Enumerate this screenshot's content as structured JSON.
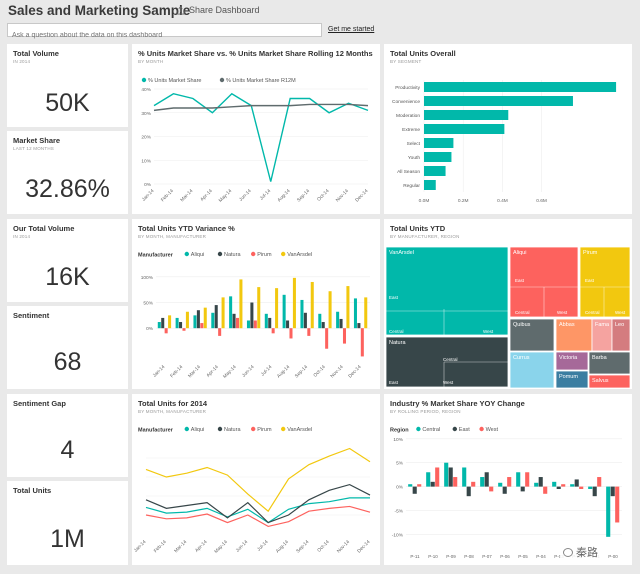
{
  "header": {
    "title": "Sales and Marketing Sample",
    "share_label": "Share Dashboard",
    "qa_placeholder": "Ask a question about the data on this dashboard",
    "get_started": "Get me started"
  },
  "colors": {
    "teal": "#01B8AA",
    "dark": "#374649",
    "red": "#FD625E",
    "yellow": "#F2C80F",
    "gray": "#5F6B6D",
    "light_teal": "#8AD4EB",
    "orange": "#FE9666",
    "purple": "#A66999"
  },
  "kpis": {
    "total_volume": {
      "title": "Total Volume",
      "sub": "IN 2014",
      "value": "50K"
    },
    "market_share": {
      "title": "Market Share",
      "sub": "LAST 12 MONTHS",
      "value": "32.86%"
    },
    "our_total_volume": {
      "title": "Our Total Volume",
      "sub": "IN 2014",
      "value": "16K"
    },
    "sentiment": {
      "title": "Sentiment",
      "value": "68"
    },
    "sentiment_gap": {
      "title": "Sentiment Gap",
      "value": "4"
    },
    "total_units": {
      "title": "Total Units",
      "value": "1M"
    }
  },
  "tiles": {
    "market_share_line": {
      "title": "% Units Market Share vs. % Units Market Share Rolling 12 Months",
      "sub": "BY MONTH"
    },
    "units_overall": {
      "title": "Total Units Overall",
      "sub": "BY SEGMENT"
    },
    "ytd_variance": {
      "title": "Total Units YTD Variance %",
      "sub": "BY MONTH, MANUFACTURER"
    },
    "units_ytd": {
      "title": "Total Units YTD",
      "sub": "BY MANUFACTURER, REGION"
    },
    "units_2014": {
      "title": "Total Units for 2014",
      "sub": "BY MONTH, MANUFACTURER"
    },
    "industry_yoy": {
      "title": "Industry % Market Share YOY Change",
      "sub": "BY ROLLING PERIOD, REGION"
    }
  },
  "chart_data": [
    {
      "type": "line",
      "x": [
        "Jan-14",
        "Feb-14",
        "Mar-14",
        "Apr-14",
        "May-14",
        "Jun-14",
        "Jul-14",
        "Aug-14",
        "Sep-14",
        "Oct-14",
        "Nov-14",
        "Dec-14"
      ],
      "ytick_labels": [
        "0%",
        "10%",
        "20%",
        "30%",
        "40%"
      ],
      "ylim": [
        0,
        40
      ],
      "legend_position": "top-left",
      "series": [
        {
          "name": "% Units Market Share",
          "values": [
            33,
            38,
            36,
            30,
            38,
            33,
            1,
            36,
            36,
            30,
            34,
            31
          ]
        },
        {
          "name": "% Units Market Share R12M",
          "values": [
            31,
            32,
            32,
            32,
            32.5,
            33,
            33,
            33,
            33.5,
            33.5,
            33.5,
            33
          ]
        }
      ]
    },
    {
      "type": "bar",
      "orientation": "horizontal",
      "categories": [
        "Productivity",
        "Convenience",
        "Moderation",
        "Extreme",
        "Select",
        "Youth",
        "All Season",
        "Regular"
      ],
      "values": [
        0.98,
        0.76,
        0.43,
        0.41,
        0.15,
        0.14,
        0.11,
        0.06
      ],
      "xtick_labels": [
        "0.0M",
        "0.2M",
        "0.4M",
        "0.6M"
      ],
      "xlim": [
        0,
        1.0
      ],
      "grid": true
    },
    {
      "type": "bar",
      "legend_title": "Manufacturer",
      "legend_position": "top",
      "categories": [
        "Jan-14",
        "Feb-14",
        "Mar-14",
        "Apr-14",
        "May-14",
        "Jun-14",
        "Jul-14",
        "Aug-14",
        "Sep-14",
        "Oct-14",
        "Nov-14",
        "Dec-14"
      ],
      "ytick_labels": [
        "100%",
        "50%",
        "0%"
      ],
      "ylim": [
        -0.6,
        1.25
      ],
      "series": [
        {
          "name": "Aliqui",
          "values": [
            0.12,
            0.2,
            0.25,
            0.3,
            0.62,
            0.15,
            0.28,
            0.65,
            0.55,
            0.28,
            0.32,
            0.58
          ]
        },
        {
          "name": "Natura",
          "values": [
            0.2,
            0.12,
            0.35,
            0.45,
            0.28,
            0.5,
            0.2,
            0.15,
            0.3,
            0.12,
            0.18,
            0.1
          ]
        },
        {
          "name": "Pirum",
          "values": [
            -0.1,
            -0.05,
            0.1,
            -0.15,
            0.2,
            0.15,
            -0.1,
            -0.2,
            -0.15,
            -0.4,
            -0.3,
            -0.55
          ]
        },
        {
          "name": "VanArsdel",
          "values": [
            0.25,
            0.32,
            0.4,
            0.6,
            0.95,
            0.8,
            0.78,
            0.98,
            0.9,
            0.72,
            0.82,
            0.6
          ]
        }
      ]
    },
    {
      "type": "treemap",
      "labels": [
        "VanArsdel",
        "East",
        "Central",
        "West",
        "Natura",
        "Central",
        "East",
        "West",
        "Aliqui",
        "East",
        "Central",
        "West",
        "Pirum",
        "East",
        "Central",
        "West",
        "Quibus",
        "Abbas",
        "Fama",
        "Leo",
        "Currus",
        "Victoria",
        "Barba",
        "Pomum",
        "Salvus"
      ]
    },
    {
      "type": "line",
      "legend_title": "Manufacturer",
      "legend_position": "top",
      "x": [
        "Jan-14",
        "Feb-14",
        "Mar-14",
        "Apr-14",
        "May-14",
        "Jun-14",
        "Jul-14",
        "Aug-14",
        "Sep-14",
        "Oct-14",
        "Nov-14",
        "Dec-14"
      ],
      "ylim": [
        0,
        10
      ],
      "series": [
        {
          "name": "Aliqui",
          "values": [
            2.8,
            2.2,
            2.3,
            2.7,
            1.8,
            2.6,
            1.2,
            2.6,
            3.2,
            3.4,
            3.8,
            3.8
          ]
        },
        {
          "name": "Natura",
          "values": [
            3.6,
            2.7,
            3.0,
            3.3,
            1.7,
            3.3,
            1.2,
            2.0,
            3.6,
            4.6,
            5.2,
            4.1
          ]
        },
        {
          "name": "Pirum",
          "values": [
            2.0,
            1.6,
            1.7,
            2.1,
            1.2,
            2.0,
            0.8,
            1.3,
            2.4,
            2.7,
            2.9,
            2.3
          ]
        },
        {
          "name": "VanArsdel",
          "values": [
            6.8,
            6.0,
            6.4,
            7.0,
            6.2,
            4.2,
            2.4,
            5.8,
            7.3,
            8.2,
            9.0,
            7.6
          ]
        }
      ]
    },
    {
      "type": "bar",
      "legend_title": "Region",
      "legend_position": "top",
      "categories": [
        "P-11",
        "P-10",
        "P-09",
        "P-08",
        "P-07",
        "P-06",
        "P-05",
        "P-04",
        "P-03",
        "P-02",
        "P-01",
        "P-00"
      ],
      "ytick_labels": [
        "10%",
        "5%",
        "0%",
        "-5%",
        "-10%"
      ],
      "ylim": [
        -12,
        11
      ],
      "series": [
        {
          "name": "Central",
          "values": [
            0.5,
            3.0,
            5.0,
            4.0,
            2.0,
            0.8,
            3.0,
            0.8,
            1.0,
            0.5,
            -0.5,
            -10.5
          ]
        },
        {
          "name": "East",
          "values": [
            -1.5,
            1.0,
            4.0,
            -2.0,
            3.0,
            -1.5,
            -1.0,
            2.0,
            -0.5,
            1.5,
            -2.0,
            -2.0
          ]
        },
        {
          "name": "West",
          "values": [
            0.5,
            4.0,
            2.0,
            1.0,
            -1.0,
            2.0,
            3.0,
            -1.5,
            0.5,
            -0.5,
            2.0,
            -7.5
          ]
        }
      ]
    }
  ],
  "watermark": {
    "text": "秦路"
  }
}
